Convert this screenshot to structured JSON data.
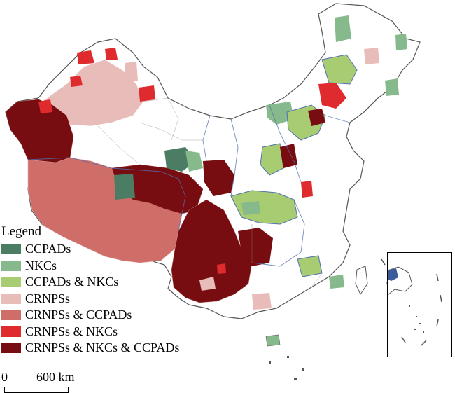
{
  "legend": {
    "title": "Legend",
    "items": [
      {
        "label": "CCPADs",
        "color": "#4a7d63"
      },
      {
        "label": "NKCs",
        "color": "#86b98b"
      },
      {
        "label": "CCPADs & NKCs",
        "color": "#a8cc72"
      },
      {
        "label": "CRNPSs",
        "color": "#e8bcb8"
      },
      {
        "label": "CRNPSs & CCPADs",
        "color": "#cf6e68"
      },
      {
        "label": "CRNPSs & NKCs",
        "color": "#df2a2e"
      },
      {
        "label": "CRNPSs & NKCs & CCPADs",
        "color": "#770d10"
      }
    ]
  },
  "scalebar": {
    "zero": "0",
    "distance": "600 km"
  }
}
